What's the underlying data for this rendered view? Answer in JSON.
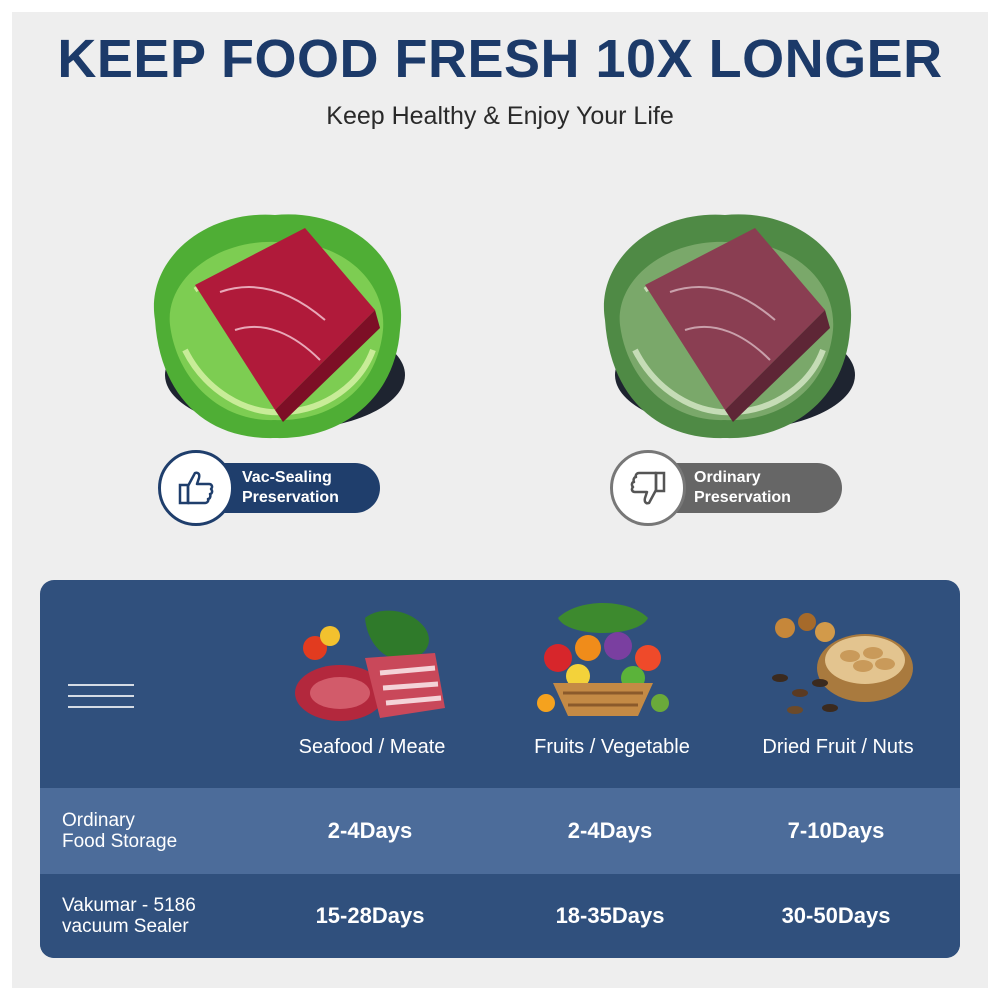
{
  "header": {
    "title": "KEEP FOOD FRESH 10X LONGER",
    "subtitle": "Keep Healthy & Enjoy Your Life"
  },
  "comparison": {
    "good": {
      "line1": "Vac-Sealing",
      "line2": "Preservation",
      "icon": "thumbs-up-icon"
    },
    "bad": {
      "line1": "Ordinary",
      "line2": "Preservation",
      "icon": "thumbs-down-icon"
    }
  },
  "table": {
    "categories": [
      {
        "label": "Seafood / Meate"
      },
      {
        "label": "Fruits / Vegetable"
      },
      {
        "label": "Dried Fruit / Nuts"
      }
    ],
    "rows": [
      {
        "head_line1": "Ordinary",
        "head_line2": "Food Storage",
        "values": [
          "2-4Days",
          "2-4Days",
          "7-10Days"
        ]
      },
      {
        "head_line1": "Vakumar - 5186",
        "head_line2": "vacuum Sealer",
        "values": [
          "15-28Days",
          "18-35Days",
          "30-50Days"
        ]
      }
    ]
  },
  "colors": {
    "navy": "#1c3a69",
    "panel": "#30507d",
    "row_highlight": "#4c6c9a",
    "gray_pill": "#666666",
    "background": "#eeeeee"
  }
}
